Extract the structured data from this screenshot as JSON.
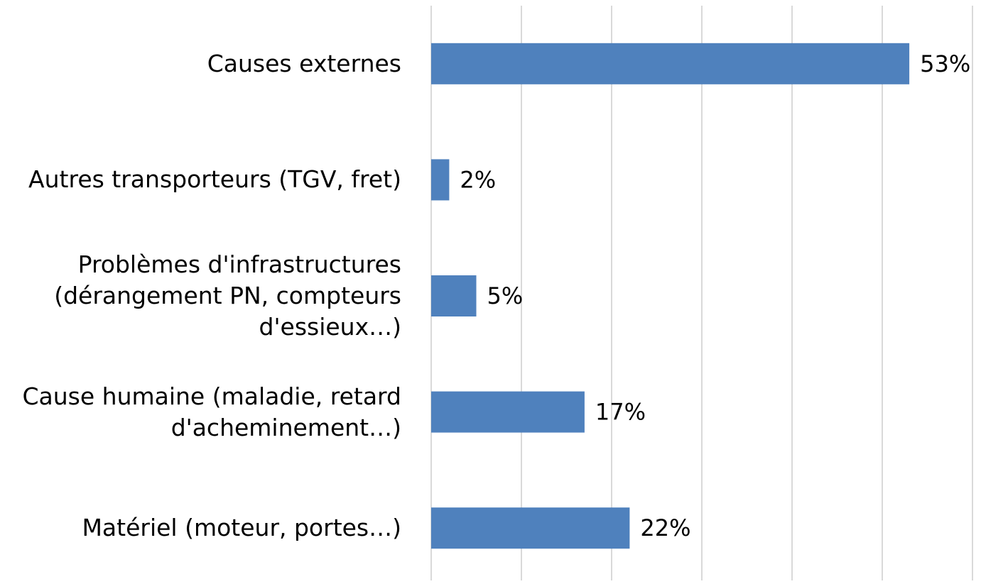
{
  "chart_data": {
    "type": "bar",
    "orientation": "horizontal",
    "categories": [
      "Causes externes",
      "Autres transporteurs (TGV, fret)",
      "Problèmes d'infrastructures\n(dérangement PN, compteurs\nd'essieux…)",
      "Cause humaine (maladie, retard\nd'acheminement…)",
      "Matériel (moteur, portes…)"
    ],
    "values": [
      53,
      2,
      5,
      17,
      22
    ],
    "value_labels": [
      "53%",
      "2%",
      "5%",
      "17%",
      "22%"
    ],
    "color": "#4f81bd",
    "xlim": [
      0,
      60
    ],
    "xticks": [
      0,
      10,
      20,
      30,
      40,
      50,
      60
    ],
    "grid": true
  }
}
